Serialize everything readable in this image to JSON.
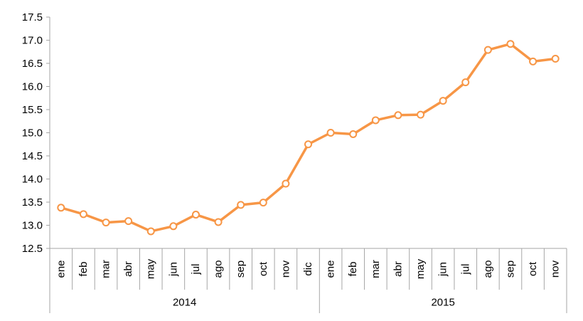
{
  "chart_data": {
    "type": "line",
    "title": "",
    "xlabel": "",
    "ylabel": "",
    "ylim": [
      12.5,
      17.5
    ],
    "ytick_step": 0.5,
    "yticks": [
      "12.5",
      "13.0",
      "13.5",
      "14.0",
      "14.5",
      "15.0",
      "15.5",
      "16.0",
      "16.5",
      "17.0",
      "17.5"
    ],
    "grid": false,
    "legend": "none",
    "categories": [
      "ene",
      "feb",
      "mar",
      "abr",
      "may",
      "jun",
      "jul",
      "ago",
      "sep",
      "oct",
      "nov",
      "dic",
      "ene",
      "feb",
      "mar",
      "abr",
      "may",
      "jun",
      "jul",
      "ago",
      "sep",
      "oct",
      "nov"
    ],
    "groups": [
      {
        "label": "2014",
        "count": 12
      },
      {
        "label": "2015",
        "count": 11
      }
    ],
    "series": [
      {
        "color": "#f79646",
        "values": [
          13.38,
          13.24,
          13.06,
          13.09,
          12.87,
          12.98,
          13.23,
          13.07,
          13.44,
          13.49,
          13.9,
          14.75,
          15.0,
          14.97,
          15.27,
          15.38,
          15.39,
          15.69,
          16.09,
          16.79,
          16.92,
          16.54,
          16.6
        ]
      }
    ]
  }
}
